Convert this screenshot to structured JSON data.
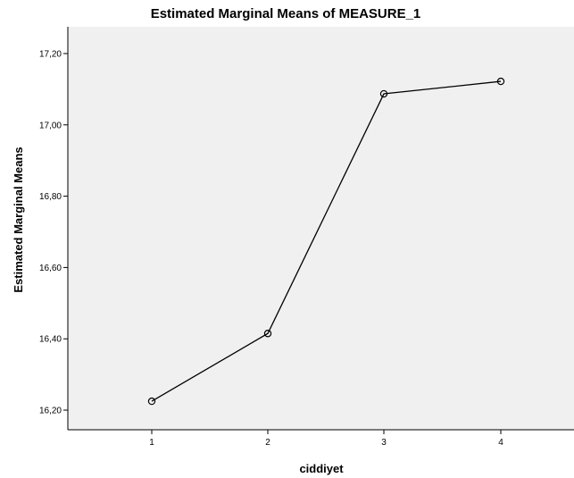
{
  "chart_data": {
    "type": "line",
    "title": "Estimated Marginal Means of MEASURE_1",
    "xlabel": "ciddiyet",
    "ylabel": "Estimated Marginal Means",
    "categories": [
      "1",
      "2",
      "3",
      "4"
    ],
    "values": [
      16.225,
      16.415,
      17.087,
      17.122
    ],
    "ylim": [
      16.145,
      17.275
    ],
    "yticks": [
      16.2,
      16.4,
      16.6,
      16.8,
      17.0,
      17.2
    ],
    "ytick_labels": [
      "16,20",
      "16,40",
      "16,60",
      "16,80",
      "17,00",
      "17,20"
    ],
    "grid": false,
    "legend": "none",
    "colors": {
      "plot_background": "#f0f0f0",
      "line": "#000000",
      "page_background": "#ffffff"
    }
  }
}
